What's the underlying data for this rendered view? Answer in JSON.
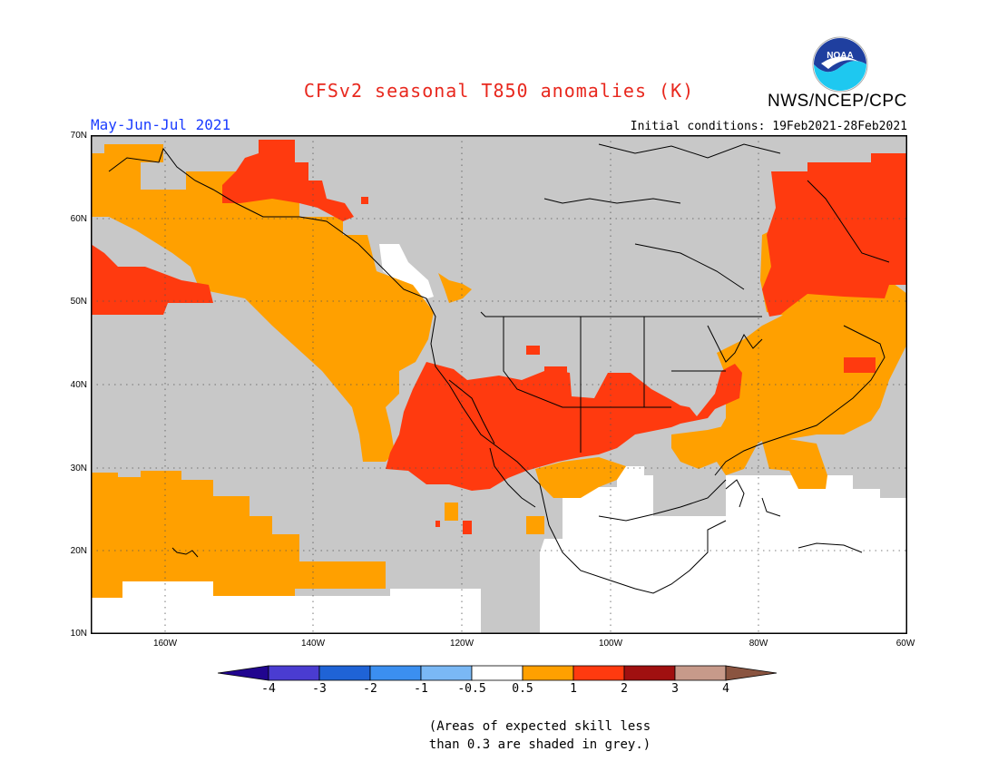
{
  "title": "CFSv2 seasonal T850 anomalies (K)",
  "organization": "NWS/NCEP/CPC",
  "logo_text": "NOAA",
  "season": "May-Jun-Jul 2021",
  "initial_conditions": "Initial conditions: 19Feb2021-28Feb2021",
  "lat_labels": [
    "70N",
    "60N",
    "50N",
    "40N",
    "30N",
    "20N",
    "10N"
  ],
  "lon_labels": [
    "160W",
    "140W",
    "120W",
    "100W",
    "80W",
    "60W"
  ],
  "colorbar": {
    "colors": [
      "#21058f",
      "#4a3cd1",
      "#1f63d6",
      "#3b8ff0",
      "#7ab8f5",
      "#ffffff",
      "#ffa000",
      "#ff3a0f",
      "#a01010",
      "#c79a8a",
      "#8a5440"
    ],
    "labels": [
      "-4",
      "-3",
      "-2",
      "-1",
      "-0.5",
      "0.5",
      "1",
      "2",
      "3",
      "4"
    ]
  },
  "colors": {
    "grey": "#c8c8c8",
    "orange": "#ffa000",
    "red": "#ff3a0f",
    "white": "#ffffff"
  },
  "note_line1": "(Areas of expected skill less",
  "note_line2": "than 0.3 are shaded in grey.)"
}
